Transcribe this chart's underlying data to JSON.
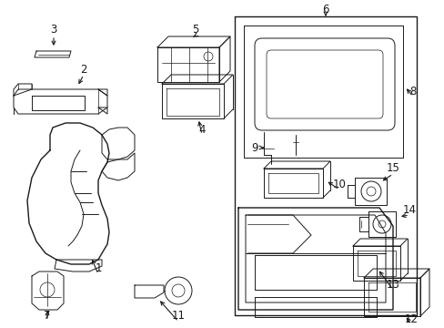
{
  "background_color": "#ffffff",
  "line_color": "#1a1a1a",
  "fig_width": 4.89,
  "fig_height": 3.6,
  "dpi": 100,
  "label_fontsize": 8.5,
  "lw_main": 1.0,
  "lw_thin": 0.7,
  "lw_hair": 0.5
}
